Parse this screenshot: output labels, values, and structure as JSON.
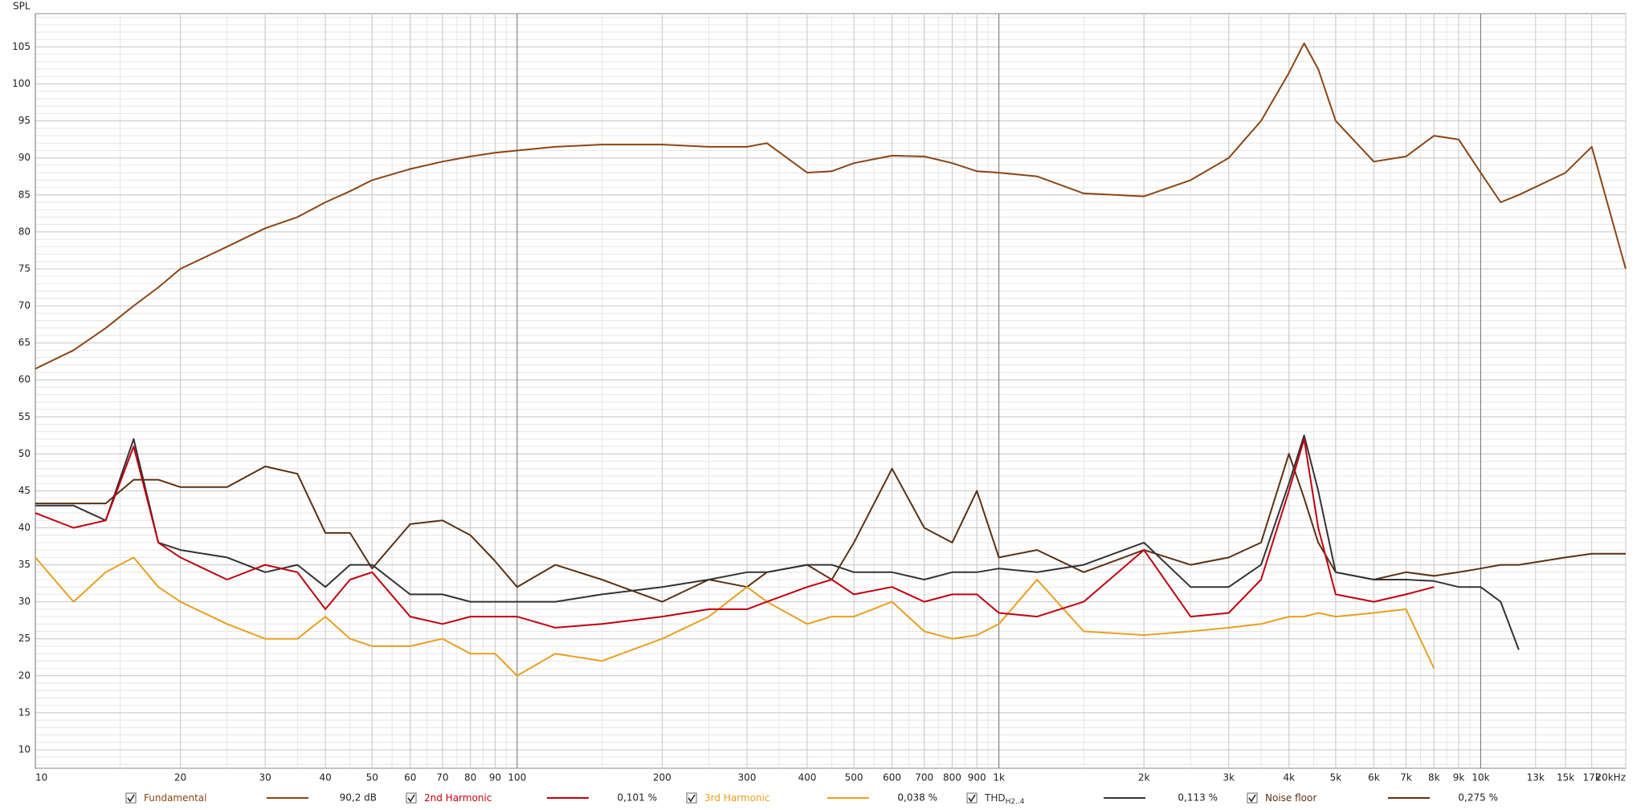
{
  "chart_data": {
    "type": "line",
    "y_label": "SPL",
    "log_x": true,
    "grid": true,
    "x": [
      10,
      12,
      14,
      16,
      18,
      20,
      25,
      30,
      35,
      40,
      45,
      50,
      60,
      70,
      80,
      90,
      100,
      120,
      150,
      200,
      250,
      300,
      330,
      400,
      450,
      500,
      600,
      700,
      800,
      900,
      1000,
      1200,
      1500,
      2000,
      2500,
      3000,
      3500,
      4000,
      4300,
      4600,
      5000,
      6000,
      7000,
      8000,
      9000,
      10000,
      11000,
      12000,
      15000,
      17000,
      20000
    ],
    "xlim": [
      10,
      20000
    ],
    "xticks": [
      10,
      20,
      30,
      40,
      50,
      60,
      70,
      80,
      90,
      100,
      200,
      300,
      400,
      500,
      600,
      700,
      800,
      900,
      {
        "value": 1000,
        "label": "1k"
      },
      {
        "value": 2000,
        "label": "2k"
      },
      {
        "value": 3000,
        "label": "3k"
      },
      {
        "value": 4000,
        "label": "4k"
      },
      {
        "value": 5000,
        "label": "5k"
      },
      {
        "value": 6000,
        "label": "6k"
      },
      {
        "value": 7000,
        "label": "7k"
      },
      {
        "value": 8000,
        "label": "8k"
      },
      {
        "value": 9000,
        "label": "9k"
      },
      {
        "value": 10000,
        "label": "10k"
      },
      {
        "value": 13000,
        "label": "13k"
      },
      {
        "value": 15000,
        "label": "15k"
      },
      {
        "value": 17000,
        "label": "17k"
      },
      {
        "value": 20000,
        "label": "20kHz"
      }
    ],
    "ylim": [
      7.5,
      109.5
    ],
    "yticks": [
      10,
      15,
      20,
      25,
      30,
      35,
      40,
      45,
      50,
      55,
      60,
      65,
      70,
      75,
      80,
      85,
      90,
      95,
      100,
      105
    ],
    "series": [
      {
        "name": "Fundamental",
        "color": "#8b4513",
        "readout": "90,2 dB",
        "values": [
          61.5,
          64,
          67,
          70,
          72.5,
          75,
          78,
          80.5,
          82,
          84,
          85.5,
          87,
          88.5,
          89.5,
          90.2,
          90.7,
          91,
          91.5,
          91.8,
          91.8,
          91.5,
          91.5,
          92,
          88,
          88.2,
          89.3,
          90.3,
          90.2,
          89.3,
          88.2,
          88,
          87.5,
          85.2,
          84.8,
          87,
          90,
          95,
          101.5,
          105.5,
          102,
          95,
          89.5,
          90.2,
          93,
          92.5,
          88,
          84,
          85,
          88,
          91.5,
          75
        ]
      },
      {
        "name": "2nd Harmonic",
        "color": "#c0000f",
        "readout": "0,101 %",
        "values": [
          42,
          40,
          41,
          51,
          38,
          36,
          33,
          35,
          34,
          29,
          33,
          34,
          28,
          27,
          28,
          28,
          28,
          26.5,
          27,
          28,
          29,
          29,
          30,
          32,
          33,
          31,
          32,
          30,
          31,
          31,
          28.5,
          28,
          30,
          37,
          28,
          28.5,
          33,
          45,
          52,
          40,
          31,
          30,
          31,
          32,
          null,
          null,
          null,
          null,
          null,
          null,
          null
        ]
      },
      {
        "name": "3rd Harmonic",
        "color": "#e8a020",
        "readout": "0,038 %",
        "values": [
          36,
          30,
          34,
          36,
          32,
          30,
          27,
          25,
          25,
          28,
          25,
          24,
          24,
          25,
          23,
          23,
          20,
          23,
          22,
          25,
          28,
          32,
          30,
          27,
          28,
          28,
          30,
          26,
          25,
          25.5,
          27,
          33,
          26,
          25.5,
          26,
          26.5,
          27,
          28,
          28,
          28.5,
          28,
          28.5,
          29,
          21,
          null,
          null,
          null,
          null,
          null,
          null,
          null
        ]
      },
      {
        "name": "THD",
        "subscript": "H2..4",
        "color": "#333333",
        "readout": "0,113 %",
        "values": [
          43,
          43,
          41,
          52,
          38,
          37,
          36,
          34,
          35,
          32,
          35,
          35,
          31,
          31,
          30,
          30,
          30,
          30,
          31,
          32,
          33,
          34,
          34,
          35,
          35,
          34,
          34,
          33,
          34,
          34,
          34.5,
          34,
          35,
          38,
          32,
          32,
          35,
          46,
          52.5,
          45,
          34,
          33,
          33,
          32.8,
          32,
          32,
          30,
          23.5,
          null,
          null,
          null
        ]
      },
      {
        "name": "Noise floor",
        "color": "#5c3010",
        "readout": "0,275 %",
        "values": [
          43.3,
          43.3,
          43.3,
          46.5,
          46.5,
          45.5,
          45.5,
          48.3,
          47.3,
          39.3,
          39.3,
          34.5,
          40.5,
          41,
          39,
          35.5,
          32,
          35,
          33,
          30,
          33,
          32,
          34,
          35,
          33,
          38,
          48,
          40,
          38,
          45,
          36,
          37,
          34,
          37,
          35,
          36,
          38,
          50,
          44,
          38,
          34,
          33,
          34,
          33.5,
          34,
          34.5,
          35,
          35,
          36,
          36.5,
          36.5
        ]
      }
    ]
  }
}
